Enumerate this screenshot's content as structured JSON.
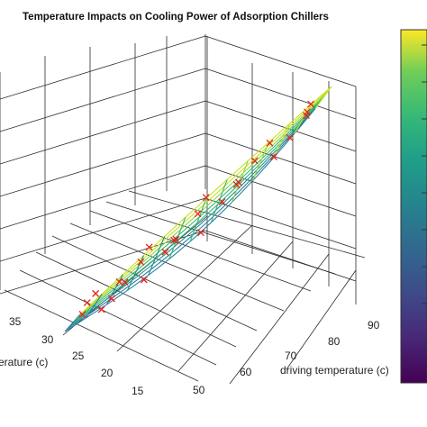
{
  "chart_data": {
    "type": "surface3d",
    "title": "Temperature Impacts on Cooling Power of Adsorption Chillers",
    "xlabel": "driving temperature (c)",
    "ylabel_visible_fragment": "erature (c)",
    "x_ticks": [
      "50",
      "60",
      "70",
      "80",
      "90"
    ],
    "y_ticks": [
      "15",
      "20",
      "25",
      "30",
      "35"
    ],
    "xlim": [
      45,
      92
    ],
    "ylim": [
      14,
      37
    ],
    "grid": true,
    "colormap": "viridis",
    "colorbar": true,
    "surface": {
      "x_range": [
        48,
        92
      ],
      "y_range": [
        15,
        36
      ],
      "note_hidden_in_render": false
    },
    "scatter_marker": "x",
    "scatter_color": "#e8221b",
    "surface_mesh_sample_colors": [
      "#2c7fa0",
      "#21918c",
      "#35b779",
      "#90d743",
      "#c8e020"
    ],
    "scatter_points": [
      {
        "x": 50,
        "y": 30
      },
      {
        "x": 50,
        "y": 29
      },
      {
        "x": 52,
        "y": 26
      },
      {
        "x": 53,
        "y": 25
      },
      {
        "x": 55,
        "y": 24
      },
      {
        "x": 55,
        "y": 27
      },
      {
        "x": 58,
        "y": 26
      },
      {
        "x": 60,
        "y": 25
      },
      {
        "x": 60,
        "y": 22
      },
      {
        "x": 62,
        "y": 28
      },
      {
        "x": 64,
        "y": 27
      },
      {
        "x": 65,
        "y": 24
      },
      {
        "x": 67,
        "y": 26
      },
      {
        "x": 70,
        "y": 25
      },
      {
        "x": 70,
        "y": 22
      },
      {
        "x": 72,
        "y": 28
      },
      {
        "x": 74,
        "y": 27
      },
      {
        "x": 76,
        "y": 24
      },
      {
        "x": 78,
        "y": 26
      },
      {
        "x": 80,
        "y": 25
      },
      {
        "x": 82,
        "y": 28
      },
      {
        "x": 84,
        "y": 22
      },
      {
        "x": 86,
        "y": 26
      },
      {
        "x": 88,
        "y": 27
      },
      {
        "x": 90,
        "y": 25
      },
      {
        "x": 90,
        "y": 24
      }
    ]
  },
  "colors": {
    "grid": "#2b2b2b",
    "background": "#ffffff",
    "marker": "#e8221b"
  }
}
